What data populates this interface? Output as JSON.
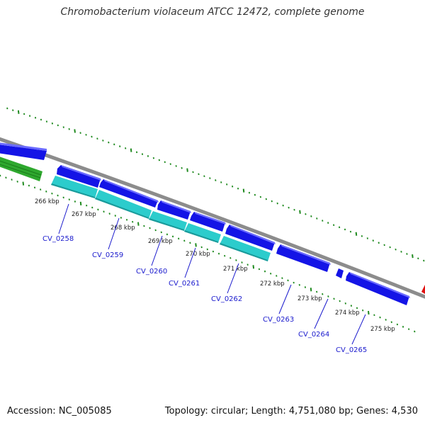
{
  "title": "Chromobacterium violaceum ATCC 12472, complete genome",
  "footer": {
    "accession": "Accession: NC_005085",
    "summary": "Topology: circular; Length: 4,751,080 bp; Genes: 4,530"
  },
  "colors": {
    "backbone": "#8c8c8c",
    "forward_cds": "#1414e6",
    "forward_cds_top": "#6b6bff",
    "reverse_cds": "#2ccccc",
    "reverse_cds_dark": "#1a9a9a",
    "other_feature": "#2ea82e",
    "other_feature_dark": "#1a7a1a",
    "edge_feature": "#e01010",
    "tick": "#1f8a1f",
    "gene_label": "#1a1acd"
  },
  "ticks": [
    "266 kbp",
    "267 kbp",
    "268 kbp",
    "269 kbp",
    "270 kbp",
    "271 kbp",
    "272 kbp",
    "273 kbp",
    "274 kbp",
    "275 kbp"
  ],
  "genes": [
    "CV_0258",
    "CV_0259",
    "CV_0260",
    "CV_0261",
    "CV_0262",
    "CV_0263",
    "CV_0264",
    "CV_0265"
  ]
}
